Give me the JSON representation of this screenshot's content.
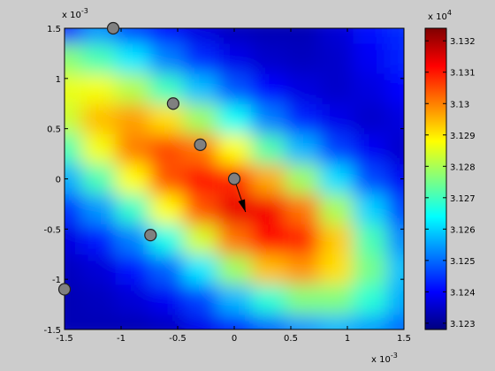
{
  "chart_data": {
    "type": "contourf",
    "colormap": "jet",
    "x": [
      -1.5,
      -1.2,
      -0.9,
      -0.6,
      -0.3,
      0,
      0.3,
      0.6,
      0.9,
      1.2,
      1.5
    ],
    "y": [
      -1.5,
      -1.2,
      -0.9,
      -0.6,
      -0.3,
      0,
      0.3,
      0.6,
      0.9,
      1.2,
      1.5
    ],
    "z": [
      [
        3.1233,
        3.1233,
        3.1233,
        3.1234,
        3.1238,
        3.1242,
        3.1249,
        3.1254,
        3.1257,
        3.1255,
        3.125
      ],
      [
        3.1233,
        3.1234,
        3.1236,
        3.1239,
        3.1246,
        3.1257,
        3.1268,
        3.1276,
        3.1276,
        3.1268,
        3.1256
      ],
      [
        3.1234,
        3.1236,
        3.1241,
        3.1249,
        3.1262,
        3.1279,
        3.1294,
        3.1298,
        3.1291,
        3.1275,
        3.1258
      ],
      [
        3.1237,
        3.1242,
        3.1252,
        3.1266,
        3.1284,
        3.1301,
        3.1312,
        3.1309,
        3.1293,
        3.1271,
        3.1253
      ],
      [
        3.1244,
        3.1254,
        3.1269,
        3.1288,
        3.1304,
        3.1314,
        3.1313,
        3.1301,
        3.128,
        3.126,
        3.1246
      ],
      [
        3.1256,
        3.1271,
        3.1288,
        3.1304,
        3.1311,
        3.1308,
        3.1296,
        3.1279,
        3.1261,
        3.1247,
        3.1239
      ],
      [
        3.1271,
        3.1287,
        3.13,
        3.1305,
        3.1301,
        3.1288,
        3.1272,
        3.1257,
        3.1246,
        3.1239,
        3.1235
      ],
      [
        3.1283,
        3.1294,
        3.1297,
        3.1291,
        3.1279,
        3.1265,
        3.1252,
        3.1243,
        3.1238,
        3.1235,
        3.1237
      ],
      [
        3.1286,
        3.1287,
        3.1281,
        3.127,
        3.1258,
        3.1248,
        3.124,
        3.1237,
        3.1235,
        3.1237,
        3.124
      ],
      [
        3.1277,
        3.1271,
        3.1262,
        3.1252,
        3.1244,
        3.1238,
        3.1235,
        3.1234,
        3.1235,
        3.1239,
        3.1243
      ],
      [
        3.1242,
        3.1254,
        3.1246,
        3.124,
        3.1237,
        3.1234,
        3.1233,
        3.1233,
        3.1236,
        3.1241,
        3.1244
      ]
    ],
    "xlim": [
      -1.5,
      1.5
    ],
    "ylim": [
      -1.5,
      1.5
    ],
    "xticks": [
      -1.5,
      -1,
      -0.5,
      0,
      0.5,
      1,
      1.5
    ],
    "yticks": [
      -1.5,
      -1,
      -0.5,
      0,
      0.5,
      1,
      1.5
    ],
    "x_multiplier": {
      "base": "x 10",
      "exponent": "-3"
    },
    "y_multiplier": {
      "base": "x 10",
      "exponent": "-3"
    },
    "colorbar": {
      "lim": [
        3.1228,
        3.1324
      ],
      "ticks": [
        3.123,
        3.124,
        3.125,
        3.126,
        3.127,
        3.128,
        3.129,
        3.13,
        3.131,
        3.132
      ],
      "multiplier": {
        "base": "x 10",
        "exponent": "4"
      }
    },
    "points": {
      "x": [
        -1.07,
        -0.54,
        -0.3,
        0,
        -0.74,
        -1.5
      ],
      "y": [
        1.5,
        0.75,
        0.34,
        0,
        -0.56,
        -1.1
      ],
      "color": "#808080"
    },
    "arrow": {
      "x": [
        0,
        0.1
      ],
      "y": [
        0,
        -0.33
      ],
      "color": "#000000"
    }
  }
}
